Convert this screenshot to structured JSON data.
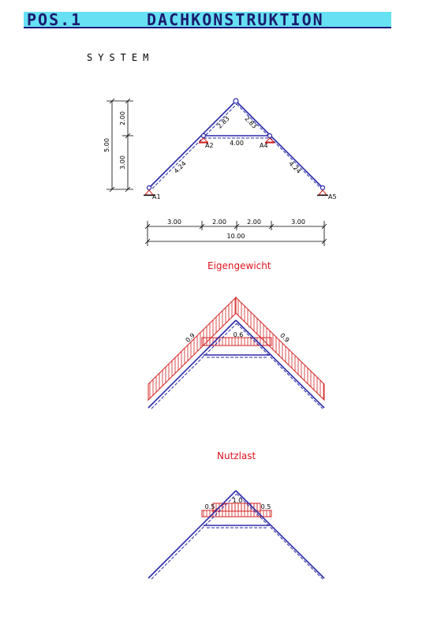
{
  "header": {
    "pos": "POS.1",
    "title": "DACHKONSTRUKTION"
  },
  "system": {
    "label": "SYSTEM",
    "nodes": [
      "A1",
      "A2",
      "A4",
      "A5"
    ],
    "vertical_dims": [
      "2.00",
      "3.00",
      "5.00"
    ],
    "member_lengths": {
      "left_lower": "4.24",
      "left_upper": "2.83",
      "right_upper": "2.83",
      "right_lower": "4.24",
      "tie": "4.00"
    },
    "horizontal_dims": [
      "3.00",
      "2.00",
      "2.00",
      "3.00"
    ],
    "total_span": "10.00"
  },
  "load_cases": {
    "dead_load": {
      "title": "Eigengewicht",
      "rafter_load": "0.9",
      "tie_load": "0.6"
    },
    "live_load": {
      "title": "Nutzlast",
      "left": "0.5",
      "middle": "1.0",
      "right": "0.5"
    }
  },
  "colors": {
    "structure": "#2a2aa8",
    "load": "#d42020",
    "title_bar": "#66e0f2",
    "lc_title": "#e0141e"
  }
}
